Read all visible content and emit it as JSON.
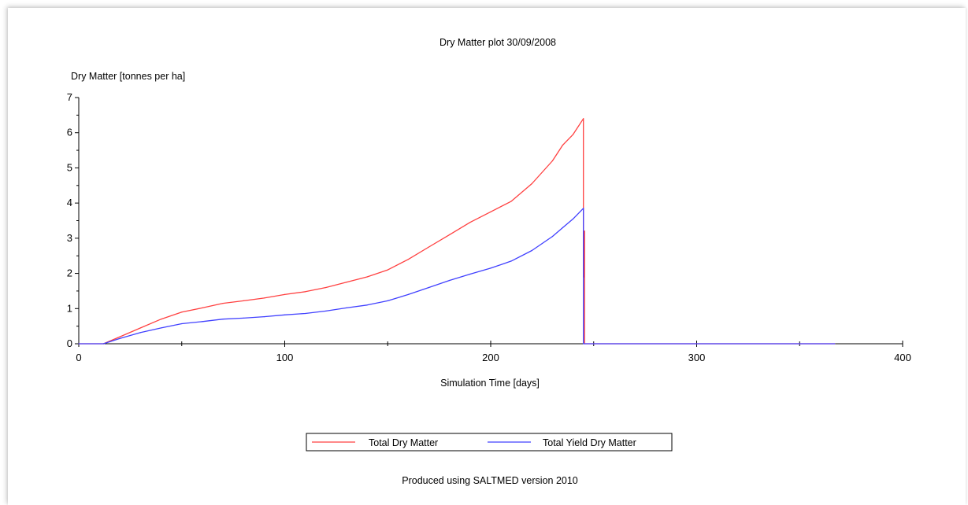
{
  "chart_data": {
    "type": "line",
    "title": "Dry Matter plot 30/09/2008",
    "xlabel": "Simulation Time [days]",
    "ylabel": "Dry Matter [tonnes per ha]",
    "xlim": [
      0,
      400
    ],
    "ylim": [
      0,
      7
    ],
    "xticks": [
      0,
      100,
      200,
      300,
      400
    ],
    "yticks": [
      0,
      1,
      2,
      3,
      4,
      5,
      6,
      7
    ],
    "grid": false,
    "legend_position": "bottom",
    "series": [
      {
        "name": "Total Dry Matter",
        "color": "#ff4040",
        "x": [
          0,
          12,
          20,
          30,
          40,
          50,
          60,
          70,
          80,
          90,
          100,
          110,
          120,
          130,
          140,
          150,
          160,
          170,
          180,
          190,
          200,
          210,
          220,
          230,
          235,
          240,
          245,
          245,
          245.3,
          245.3,
          245.6,
          245.6,
          250,
          300,
          350,
          367
        ],
        "y": [
          0,
          0,
          0.2,
          0.45,
          0.7,
          0.9,
          1.02,
          1.15,
          1.22,
          1.3,
          1.4,
          1.48,
          1.6,
          1.75,
          1.9,
          2.1,
          2.4,
          2.75,
          3.1,
          3.45,
          3.75,
          4.05,
          4.55,
          5.2,
          5.65,
          5.95,
          6.4,
          1.9,
          1.9,
          3.2,
          3.2,
          0,
          0,
          0,
          0,
          0
        ]
      },
      {
        "name": "Total Yield Dry Matter",
        "color": "#4040ff",
        "x": [
          0,
          12,
          20,
          30,
          40,
          50,
          60,
          70,
          80,
          90,
          100,
          110,
          120,
          130,
          140,
          150,
          160,
          170,
          180,
          190,
          200,
          210,
          220,
          230,
          235,
          240,
          245,
          245,
          250,
          300,
          350,
          367
        ],
        "y": [
          0,
          0,
          0.15,
          0.32,
          0.45,
          0.57,
          0.63,
          0.7,
          0.73,
          0.77,
          0.82,
          0.86,
          0.93,
          1.02,
          1.1,
          1.22,
          1.4,
          1.6,
          1.8,
          1.98,
          2.15,
          2.35,
          2.65,
          3.05,
          3.3,
          3.55,
          3.85,
          0,
          0,
          0,
          0,
          0
        ]
      }
    ]
  },
  "footer": "Produced using SALTMED version 2010"
}
